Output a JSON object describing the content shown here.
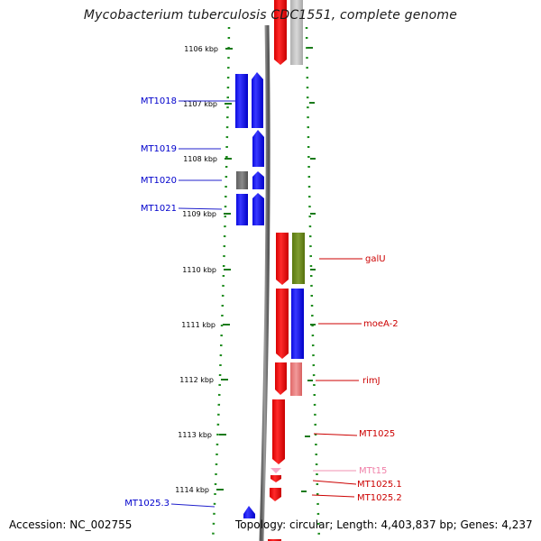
{
  "title": "Mycobacterium tuberculosis CDC1551, complete genome",
  "footer": {
    "accession": "Accession: NC_002755",
    "stats": "Topology: circular; Length: 4,403,837 bp; Genes: 4,237"
  },
  "colors": {
    "forward": "#2a2aff",
    "reverse": "#ff1f1f",
    "label_forward": "#0000cc",
    "label_reverse": "#cc0000",
    "backbone": "#7f7f7f",
    "ticks": "#1a7a1a"
  },
  "ticks": [
    "1106 kbp",
    "1107 kbp",
    "1108 kbp",
    "1109 kbp",
    "1110 kbp",
    "1111 kbp",
    "1112 kbp",
    "1113 kbp",
    "1114 kbp"
  ],
  "labels_left": [
    {
      "name": "MT1018"
    },
    {
      "name": "MT1019"
    },
    {
      "name": "MT1020"
    },
    {
      "name": "MT1021"
    },
    {
      "name": "MT1025.3"
    }
  ],
  "labels_right": [
    {
      "name": "galU"
    },
    {
      "name": "moeA-2"
    },
    {
      "name": "rimJ"
    },
    {
      "name": "MT1025"
    },
    {
      "name": "MTt15"
    },
    {
      "name": "MT1025.1"
    },
    {
      "name": "MT1025.2"
    }
  ]
}
